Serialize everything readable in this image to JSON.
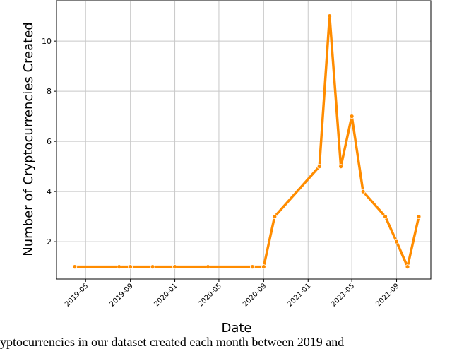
{
  "chart_data": {
    "type": "line",
    "x_label": "Date",
    "y_label": "Number of Cryptocurrencies Created",
    "caption": "yptocurrencies in our dataset created each month between 2019 and",
    "x": [
      "2019-04",
      "2019-08",
      "2019-09",
      "2019-11",
      "2020-01",
      "2020-04",
      "2020-08",
      "2020-09",
      "2020-10",
      "2021-02",
      "2021-03",
      "2021-04",
      "2021-05",
      "2021-06",
      "2021-08",
      "2021-09",
      "2021-10",
      "2021-11"
    ],
    "series": [
      {
        "color": "#ff8c00",
        "values": [
          1,
          1,
          1,
          1,
          1,
          1,
          1,
          1,
          3,
          5,
          11,
          5,
          7,
          4,
          3,
          2,
          1,
          3
        ]
      }
    ],
    "xlim": [
      "2019-02-10",
      "2021-12-04"
    ],
    "xticks": [
      "2019-05",
      "2019-09",
      "2020-01",
      "2020-05",
      "2020-09",
      "2021-01",
      "2021-05",
      "2021-09"
    ],
    "ylim": [
      0.51,
      11.61
    ],
    "yticks": [
      2,
      4,
      6,
      8,
      10
    ],
    "grid": true
  }
}
